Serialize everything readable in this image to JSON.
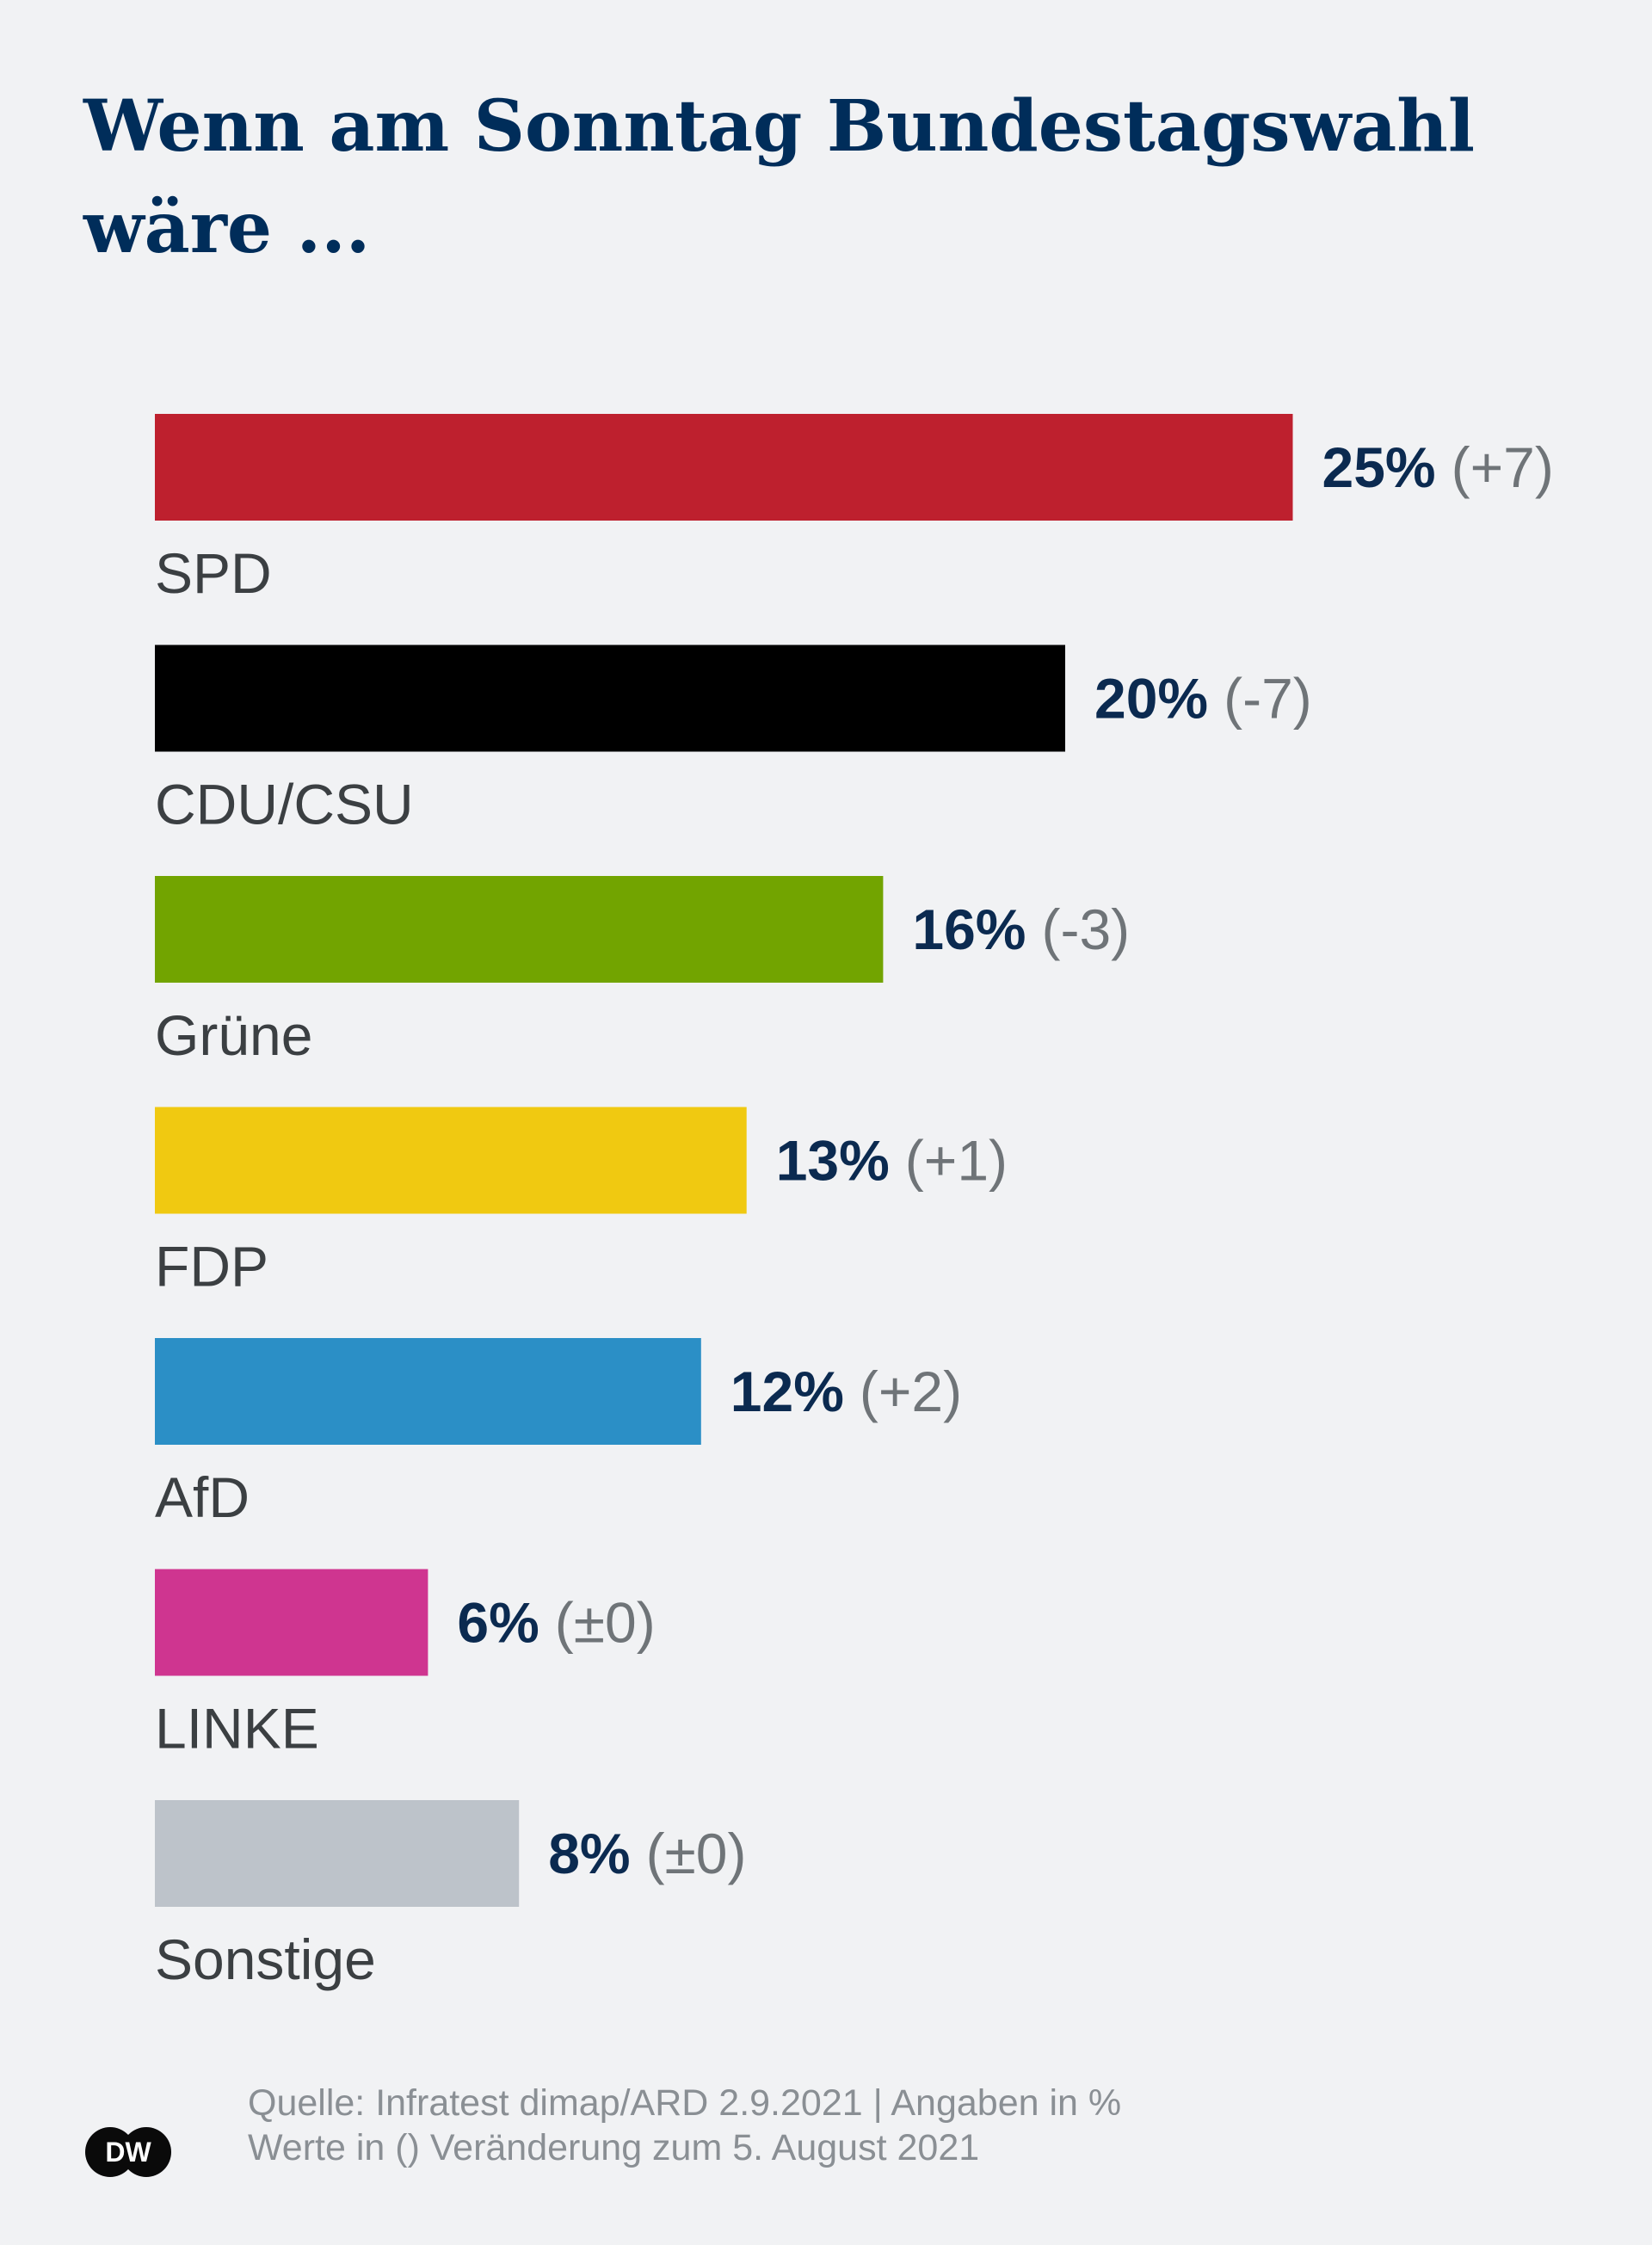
{
  "title": "Wenn am Sonntag Bundestagswahl wäre ...",
  "chart_data": {
    "type": "bar",
    "orientation": "horizontal",
    "categories": [
      "SPD",
      "CDU/CSU",
      "Grüne",
      "FDP",
      "AfD",
      "LINKE",
      "Sonstige"
    ],
    "values": [
      25,
      20,
      16,
      13,
      12,
      6,
      8
    ],
    "value_labels": [
      "25%",
      "20%",
      "16%",
      "13%",
      "12%",
      "6%",
      "8%"
    ],
    "changes": [
      "(+7)",
      "(-7)",
      "(-3)",
      "(+1)",
      "(+2)",
      "(±0)",
      "(±0)"
    ],
    "colors": [
      "#be202e",
      "#000000",
      "#72a400",
      "#f0c911",
      "#2b8fc6",
      "#cf3590",
      "#bdc3ca"
    ],
    "unit": "%"
  },
  "footer": {
    "line1": "Quelle: Infratest dimap/ARD 2.9.2021 | Angaben in %",
    "line2": "Werte in () Veränderung zum 5. August 2021"
  },
  "logo": {
    "text": "DW",
    "icon": "dw-logo-icon"
  }
}
